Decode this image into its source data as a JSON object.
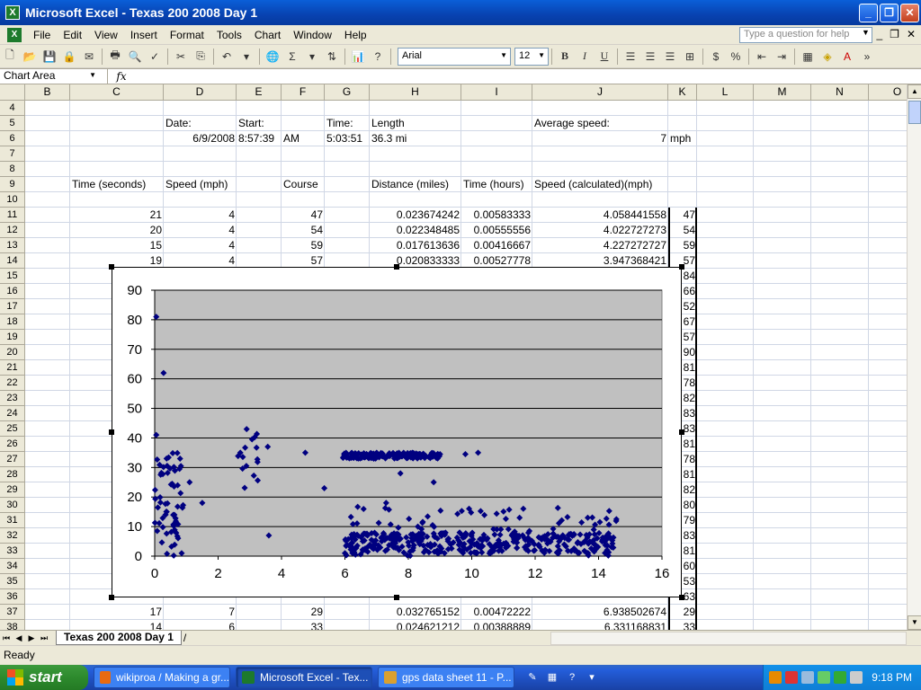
{
  "window": {
    "title": "Microsoft Excel - Texas 200 2008 Day 1"
  },
  "menu": {
    "items": [
      "File",
      "Edit",
      "View",
      "Insert",
      "Format",
      "Tools",
      "Chart",
      "Window",
      "Help"
    ],
    "help_placeholder": "Type a question for help"
  },
  "toolbar": {
    "font": "Arial",
    "size": "12"
  },
  "formula": {
    "namebox": "Chart Area",
    "fx": "fx"
  },
  "columns": [
    "B",
    "C",
    "D",
    "E",
    "F",
    "G",
    "H",
    "I",
    "J",
    "K",
    "L",
    "M",
    "N",
    "O"
  ],
  "rows": [
    "4",
    "5",
    "6",
    "7",
    "8",
    "9",
    "10",
    "11",
    "12",
    "13",
    "14",
    "15",
    "16",
    "17",
    "18",
    "19",
    "20",
    "21",
    "22",
    "23",
    "24",
    "25",
    "26",
    "27",
    "28",
    "29",
    "30",
    "31",
    "32",
    "33",
    "34",
    "35",
    "36",
    "37",
    "38"
  ],
  "cells": {
    "d5": "Date:",
    "e5": "Start:",
    "g5": "Time:",
    "h5": "Length",
    "j5": "Average speed:",
    "d6": "6/9/2008",
    "e6": "8:57:39",
    "f6": "AM",
    "g6": "5:03:51",
    "h6": "36.3 mi",
    "j6": "7",
    "k6": "mph",
    "c9": "Time (seconds)",
    "d9": "Speed (mph)",
    "f9": "Course",
    "h9": "Distance (miles)",
    "i9": "Time (hours)",
    "j9": "Speed (calculated)(mph)",
    "data_rows": [
      {
        "c": "21",
        "d": "4",
        "f": "47",
        "h": "0.023674242",
        "i": "0.00583333",
        "j": "4.058441558",
        "k": "47"
      },
      {
        "c": "20",
        "d": "4",
        "f": "54",
        "h": "0.022348485",
        "i": "0.00555556",
        "j": "4.022727273",
        "k": "54"
      },
      {
        "c": "15",
        "d": "4",
        "f": "59",
        "h": "0.017613636",
        "i": "0.00416667",
        "j": "4.227272727",
        "k": "59"
      },
      {
        "c": "19",
        "d": "4",
        "f": "57",
        "h": "0.020833333",
        "i": "0.00527778",
        "j": "3.947368421",
        "k": "57"
      }
    ],
    "k_col": [
      "84",
      "66",
      "52",
      "67",
      "57",
      "90",
      "81",
      "78",
      "82",
      "83",
      "83",
      "81",
      "78",
      "81",
      "82",
      "80",
      "79",
      "83",
      "81",
      "60",
      "53",
      "63"
    ],
    "row37": {
      "c": "17",
      "d": "7",
      "f": "29",
      "h": "0.032765152",
      "i": "0.00472222",
      "j": "6.938502674",
      "k": "29"
    },
    "row38": {
      "c": "14",
      "d": "6",
      "f": "33",
      "h": "0.024621212",
      "i": "0.00388889",
      "j": "6.331168831",
      "k": "33"
    }
  },
  "sheet": {
    "tab": "Texas 200 2008 Day 1"
  },
  "status": {
    "text": "Ready"
  },
  "taskbar": {
    "start": "start",
    "tasks": [
      "wikiproa / Making a gr...",
      "Microsoft Excel - Tex...",
      "gps data sheet 11 - P..."
    ],
    "clock": "9:18 PM"
  },
  "colors": {
    "plot_bg": "#c0c0c0",
    "marker": "#000080",
    "title_blue": "#0842b0"
  },
  "chart_data": {
    "type": "scatter",
    "xlim": [
      0,
      16
    ],
    "ylim": [
      0,
      90
    ],
    "xticks": [
      0,
      2,
      4,
      6,
      8,
      10,
      12,
      14,
      16
    ],
    "yticks": [
      0,
      10,
      20,
      30,
      40,
      50,
      60,
      70,
      80,
      90
    ],
    "grid": "horizontal",
    "legend": "none",
    "clusters": [
      {
        "x": [
          0.0,
          0.9
        ],
        "y": [
          0,
          35
        ],
        "n": 60
      },
      {
        "x": [
          2.5,
          3.6
        ],
        "y": [
          23,
          43
        ],
        "n": 15
      },
      {
        "x": [
          5.9,
          9.0
        ],
        "y": [
          33,
          35
        ],
        "n": 160
      },
      {
        "x": [
          6.0,
          14.6
        ],
        "y": [
          0,
          17
        ],
        "n": 420
      }
    ],
    "points": [
      [
        0.05,
        81
      ],
      [
        0.28,
        62
      ],
      [
        0.05,
        41
      ],
      [
        2.9,
        43
      ],
      [
        3.6,
        7
      ],
      [
        5.35,
        23
      ],
      [
        7.75,
        28
      ],
      [
        8.8,
        25
      ],
      [
        8.3,
        10
      ],
      [
        7.3,
        18
      ],
      [
        0.8,
        33
      ],
      [
        1.5,
        18
      ],
      [
        4.75,
        35
      ],
      [
        1.1,
        25
      ],
      [
        2.7,
        35
      ],
      [
        6.0,
        1
      ],
      [
        0.85,
        1
      ],
      [
        10.2,
        35
      ],
      [
        9.8,
        34.5
      ],
      [
        9.0,
        34.5
      ]
    ]
  }
}
